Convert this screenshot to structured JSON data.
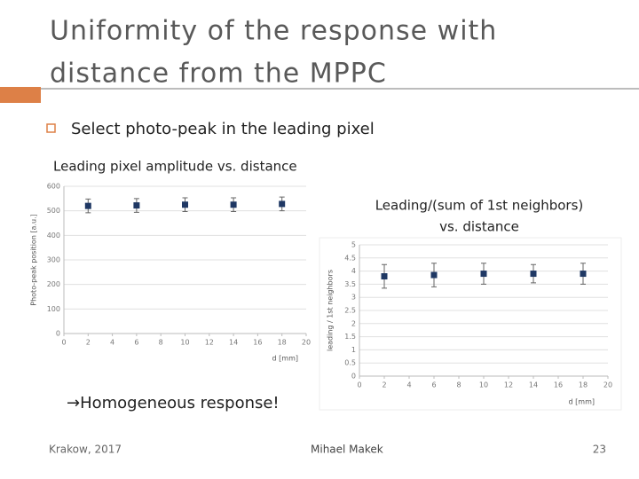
{
  "title": [
    "Uniformity of the response with",
    "distance from the MPPC"
  ],
  "bullet": "Select photo-peak in the leading pixel",
  "conclusion": "→Homogeneous response!",
  "footer": {
    "left": "Krakow, 2017",
    "center": "Mihael Makek",
    "page": "23"
  },
  "chart_data": [
    {
      "type": "scatter",
      "title": [
        "Leading pixel amplitude vs. distance"
      ],
      "x": [
        2,
        6,
        10,
        14,
        18
      ],
      "series": [
        {
          "color": "#1f3864",
          "values": [
            520,
            522,
            525,
            525,
            528
          ],
          "errors": [
            28,
            28,
            28,
            28,
            28
          ]
        }
      ],
      "xlim": [
        0,
        20
      ],
      "xticks": [
        0,
        2,
        4,
        6,
        8,
        10,
        12,
        14,
        16,
        18,
        20
      ],
      "ylim": [
        0,
        600
      ],
      "yticks": [
        0,
        100,
        200,
        300,
        400,
        500,
        600
      ],
      "xlabel": "d [mm]",
      "ylabel": "Photo-peak position [a.u.]",
      "grid": true
    },
    {
      "type": "scatter",
      "title": [
        "Leading/(sum of 1st neighbors)",
        "vs. distance"
      ],
      "x": [
        2,
        6,
        10,
        14,
        18
      ],
      "series": [
        {
          "color": "#1f3864",
          "values": [
            3.8,
            3.85,
            3.9,
            3.9,
            3.9
          ],
          "errors": [
            0.45,
            0.45,
            0.4,
            0.35,
            0.4
          ]
        }
      ],
      "xlim": [
        0,
        20
      ],
      "xticks": [
        0,
        2,
        4,
        6,
        8,
        10,
        12,
        14,
        16,
        18,
        20
      ],
      "ylim": [
        0,
        5
      ],
      "yticks": [
        0,
        0.5,
        1,
        1.5,
        2,
        2.5,
        3,
        3.5,
        4,
        4.5,
        5
      ],
      "xlabel": "d [mm]",
      "ylabel": "leading / 1st neighbors",
      "grid": true
    }
  ]
}
